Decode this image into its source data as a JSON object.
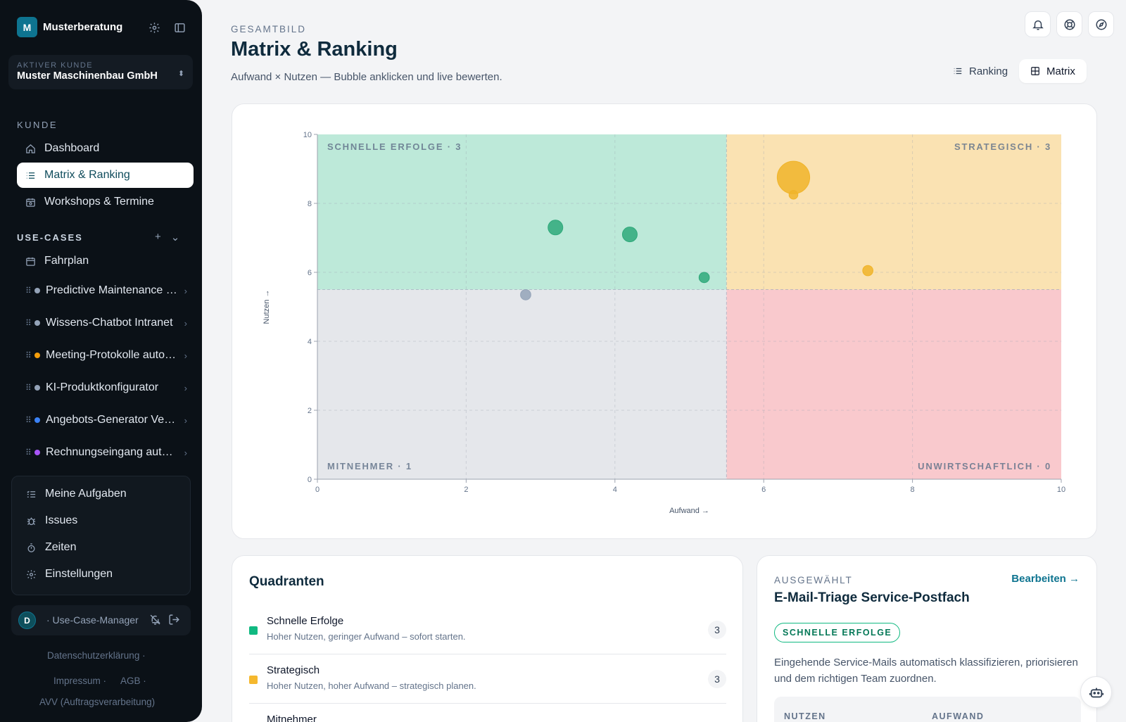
{
  "sidebar": {
    "brand_initial": "M",
    "brand_name": "Musterberatung",
    "client_caption": "AKTIVER KUNDE",
    "client_name": "Muster Maschinenbau GmbH",
    "section_kunde": "KUNDE",
    "nav": [
      {
        "label": "Dashboard",
        "icon": "home-icon"
      },
      {
        "label": "Matrix & Ranking",
        "icon": "list-icon",
        "active": true
      },
      {
        "label": "Workshops & Termine",
        "icon": "calendar-clock-icon"
      }
    ],
    "section_usecases": "USE-CASES",
    "fahrplan_label": "Fahrplan",
    "usecases": [
      {
        "label": "Predictive Maintenance Maschinenpark",
        "color": "#94a3b8"
      },
      {
        "label": "Wissens-Chatbot Intranet",
        "color": "#94a3b8"
      },
      {
        "label": "Meeting-Protokolle automatisieren",
        "color": "#f59e0b"
      },
      {
        "label": "KI-Produktkonfigurator",
        "color": "#94a3b8"
      },
      {
        "label": "Angebots-Generator Vertrieb",
        "color": "#3b82f6"
      },
      {
        "label": "Rechnungseingang automatisieren",
        "color": "#a855f7"
      }
    ],
    "bottom_nav": [
      {
        "label": "Meine Aufgaben",
        "icon": "tasks-icon"
      },
      {
        "label": "Issues",
        "icon": "bug-icon"
      },
      {
        "label": "Zeiten",
        "icon": "timer-icon"
      },
      {
        "label": "Einstellungen",
        "icon": "gear-icon"
      }
    ],
    "user_initial": "D",
    "user_role": "· Use-Case-Manager",
    "footer": {
      "privacy": "Datenschutzerklärung",
      "imprint": "Impressum",
      "terms": "AGB",
      "avv": "AVV (Auftragsverarbeitung)",
      "sep": "·"
    }
  },
  "header": {
    "eyebrow": "GESAMTBILD",
    "title": "Matrix & Ranking",
    "subtitle": "Aufwand × Nutzen — Bubble anklicken und live bewerten.",
    "view_ranking": "Ranking",
    "view_matrix": "Matrix"
  },
  "chart_data": {
    "type": "scatter",
    "xlabel": "Aufwand →",
    "ylabel": "Nutzen →",
    "xlim": [
      0,
      10
    ],
    "ylim": [
      0,
      10
    ],
    "xticks": [
      0,
      2,
      4,
      6,
      8,
      10
    ],
    "yticks": [
      0,
      2,
      4,
      6,
      8,
      10
    ],
    "thresholds": {
      "x": 5.5,
      "y": 5.5
    },
    "quadrants": [
      {
        "label": "SCHNELLE ERFOLGE · 3",
        "position": "top-left",
        "color": "#bde9d9"
      },
      {
        "label": "STRATEGISCH · 3",
        "position": "top-right",
        "color": "#fae2b2"
      },
      {
        "label": "MITNEHMER · 1",
        "position": "bottom-left",
        "color": "#e5e7eb"
      },
      {
        "label": "UNWIRTSCHAFTLICH · 0",
        "position": "bottom-right",
        "color": "#f9c9cd"
      }
    ],
    "points": [
      {
        "x": 3.2,
        "y": 7.3,
        "size": 1.0,
        "color": "#2fa97a"
      },
      {
        "x": 4.2,
        "y": 7.1,
        "size": 1.0,
        "color": "#2fa97a"
      },
      {
        "x": 5.2,
        "y": 5.85,
        "size": 0.7,
        "color": "#2fa97a"
      },
      {
        "x": 2.8,
        "y": 5.35,
        "size": 0.7,
        "color": "#94a3b8"
      },
      {
        "x": 6.4,
        "y": 8.75,
        "size": 2.2,
        "color": "#f0b429"
      },
      {
        "x": 6.4,
        "y": 8.25,
        "size": 0.6,
        "color": "#f0b429"
      },
      {
        "x": 7.4,
        "y": 6.05,
        "size": 0.7,
        "color": "#f0b429"
      }
    ]
  },
  "quadrants_panel": {
    "title": "Quadranten",
    "rows": [
      {
        "name": "Schnelle Erfolge",
        "desc": "Hoher Nutzen, geringer Aufwand – sofort starten.",
        "count": "3",
        "color": "#10b981"
      },
      {
        "name": "Strategisch",
        "desc": "Hoher Nutzen, hoher Aufwand – strategisch planen.",
        "count": "3",
        "color": "#f5b82e"
      },
      {
        "name": "Mitnehmer",
        "desc": "",
        "count": "",
        "color": "#94a3b8"
      }
    ]
  },
  "selected": {
    "eyebrow": "AUSGEWÄHLT",
    "edit": "Bearbeiten →",
    "title": "E-Mail-Triage Service-Postfach",
    "badge": "SCHNELLE ERFOLGE",
    "desc": "Eingehende Service-Mails automatisch klassifizieren, priorisieren und dem richtigen Team zuordnen.",
    "metric_nutzen": "NUTZEN",
    "metric_aufwand": "AUFWAND"
  }
}
